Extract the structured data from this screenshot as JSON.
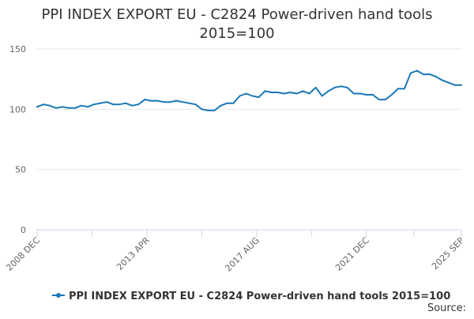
{
  "chart_data": {
    "type": "line",
    "title": "PPI INDEX EXPORT EU - C2824 Power-driven hand tools",
    "subtitle": "2015=100",
    "xlabel": "",
    "ylabel": "",
    "ylim": [
      0,
      150
    ],
    "y_ticks": [
      0,
      50,
      100,
      150
    ],
    "x_tick_labels": [
      "2008 DEC",
      "2013 APR",
      "2017 AUG",
      "2021 DEC",
      "2025 SEP"
    ],
    "x_range": [
      "2008 DEC",
      "2025 SEP"
    ],
    "grid": "horizontal",
    "legend_position": "bottom",
    "series": [
      {
        "name": "PPI INDEX EXPORT EU - C2824 Power-driven hand tools 2015=100",
        "color": "#1a78b6",
        "x": [
          "2008-12",
          "2009-03",
          "2009-06",
          "2009-09",
          "2009-12",
          "2010-03",
          "2010-06",
          "2010-09",
          "2010-12",
          "2011-03",
          "2011-06",
          "2011-09",
          "2011-12",
          "2012-03",
          "2012-06",
          "2012-09",
          "2012-12",
          "2013-03",
          "2013-06",
          "2013-09",
          "2013-12",
          "2014-03",
          "2014-06",
          "2014-09",
          "2014-12",
          "2015-03",
          "2015-06",
          "2015-09",
          "2015-12",
          "2016-03",
          "2016-06",
          "2016-09",
          "2016-12",
          "2017-03",
          "2017-06",
          "2017-09",
          "2017-12",
          "2018-03",
          "2018-06",
          "2018-09",
          "2018-12",
          "2019-03",
          "2019-06",
          "2019-09",
          "2019-12",
          "2020-03",
          "2020-06",
          "2020-09",
          "2020-12",
          "2021-03",
          "2021-06",
          "2021-09",
          "2021-12",
          "2022-03",
          "2022-06",
          "2022-09",
          "2022-12",
          "2023-03",
          "2023-06",
          "2023-09",
          "2023-12",
          "2024-03",
          "2024-06",
          "2024-09",
          "2024-12",
          "2025-03",
          "2025-06",
          "2025-09"
        ],
        "values": [
          102,
          104,
          103,
          101,
          102,
          101,
          101,
          103,
          102,
          104,
          105,
          106,
          104,
          104,
          105,
          103,
          104,
          108,
          107,
          107,
          106,
          106,
          107,
          106,
          105,
          104,
          100,
          99,
          99,
          103,
          105,
          105,
          111,
          113,
          111,
          110,
          115,
          114,
          114,
          113,
          114,
          113,
          115,
          113,
          118,
          111,
          115,
          118,
          119,
          118,
          113,
          113,
          112,
          112,
          108,
          108,
          112,
          117,
          117,
          130,
          132,
          129,
          129,
          127,
          124,
          122,
          120,
          120
        ]
      }
    ],
    "source_label": "Source:"
  }
}
